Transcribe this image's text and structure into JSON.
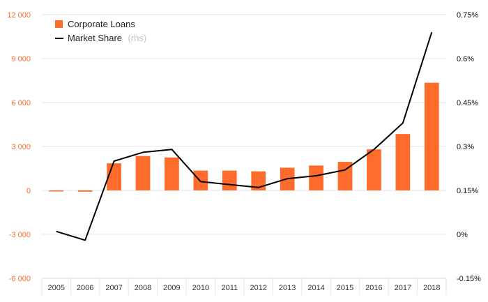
{
  "chart_data": {
    "type": "bar",
    "categories": [
      "2005",
      "2006",
      "2007",
      "2008",
      "2009",
      "2010",
      "2011",
      "2012",
      "2013",
      "2014",
      "2015",
      "2016",
      "2017",
      "2018"
    ],
    "series": [
      {
        "name": "Corporate Loans",
        "type": "bar",
        "axis": "left",
        "color": "#ff6b2b",
        "values": [
          -50,
          -90,
          1850,
          2350,
          2250,
          1350,
          1350,
          1300,
          1550,
          1700,
          1950,
          2800,
          3850,
          7350
        ]
      },
      {
        "name": "Market Share",
        "name_suffix": "(rhs)",
        "type": "line",
        "axis": "right",
        "color": "#000000",
        "values": [
          0.0001,
          -0.0002,
          0.0025,
          0.0028,
          0.0029,
          0.0018,
          0.0017,
          0.0016,
          0.0019,
          0.002,
          0.0022,
          0.0029,
          0.0038,
          0.0069
        ]
      }
    ],
    "yleft": {
      "lim": [
        -6000,
        12000
      ],
      "ticks": [
        -6000,
        -3000,
        0,
        3000,
        6000,
        9000,
        12000
      ],
      "tick_labels": [
        "-6 000",
        "-3 000",
        "0",
        "3 000",
        "6 000",
        "9 000",
        "12 000"
      ]
    },
    "yright": {
      "lim": [
        -0.0015,
        0.0075
      ],
      "ticks": [
        -0.0015,
        0,
        0.0015,
        0.003,
        0.0045,
        0.006,
        0.0075
      ],
      "tick_labels": [
        "-0.15%",
        "0%",
        "0.15%",
        "0.3%",
        "0.45%",
        "0.6%",
        "0.75%"
      ]
    },
    "title": "",
    "xlabel": "",
    "ylabel": "",
    "grid": true,
    "legend_position": "top-left"
  }
}
